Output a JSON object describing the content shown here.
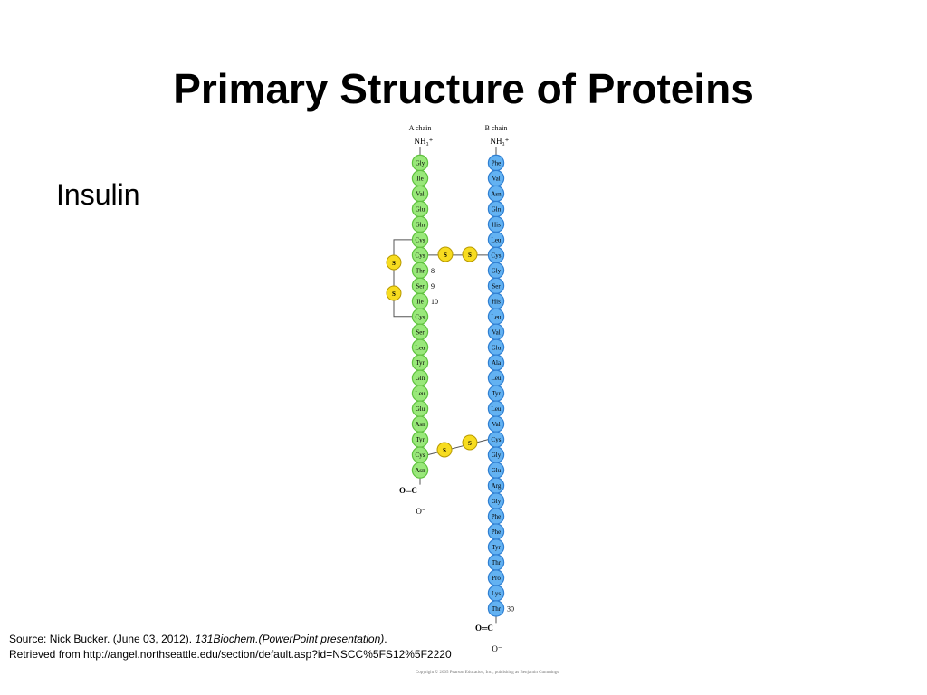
{
  "title": "Primary Structure of Proteins",
  "bullet": "Insulin",
  "diagram": {
    "a_chain": {
      "label": "A chain",
      "n_terminus": "NH₃⁺",
      "residues": [
        "Gly",
        "Ile",
        "Val",
        "Glu",
        "Gln",
        "Cys",
        "Cys",
        "Thr",
        "Ser",
        "Ile",
        "Cys",
        "Ser",
        "Leu",
        "Tyr",
        "Gln",
        "Leu",
        "Glu",
        "Asn",
        "Tyr",
        "Cys",
        "Asn"
      ],
      "numbers": [
        "8",
        "9",
        "10"
      ],
      "c_terminus": "O═C",
      "c_oxygen": "O⁻"
    },
    "b_chain": {
      "label": "B chain",
      "n_terminus": "NH₃⁺",
      "residues": [
        "Phe",
        "Val",
        "Asn",
        "Gln",
        "His",
        "Leu",
        "Cys",
        "Gly",
        "Ser",
        "His",
        "Leu",
        "Val",
        "Glu",
        "Ala",
        "Leu",
        "Tyr",
        "Leu",
        "Val",
        "Cys",
        "Gly",
        "Glu",
        "Arg",
        "Gly",
        "Phe",
        "Phe",
        "Tyr",
        "Thr",
        "Pro",
        "Lys",
        "Thr"
      ],
      "numbers": [
        "30"
      ],
      "c_terminus": "O═C",
      "c_oxygen": "O⁻"
    },
    "sulfur_atoms": [
      "S",
      "S",
      "S",
      "S",
      "S",
      "S"
    ],
    "copyright": "Copyright © 2005 Pearson Education, Inc., publishing as Benjamin Cummings"
  },
  "source": {
    "line1": "Source: Nick Bucker. (June 03, 2012).",
    "line1_italic": "131Biochem.(PowerPoint presentation)",
    "line1_end": ".",
    "line2": "Retrieved from http://angel.northseattle.edu/section/default.asp?id=NSCC%5FS12%5F2220"
  }
}
